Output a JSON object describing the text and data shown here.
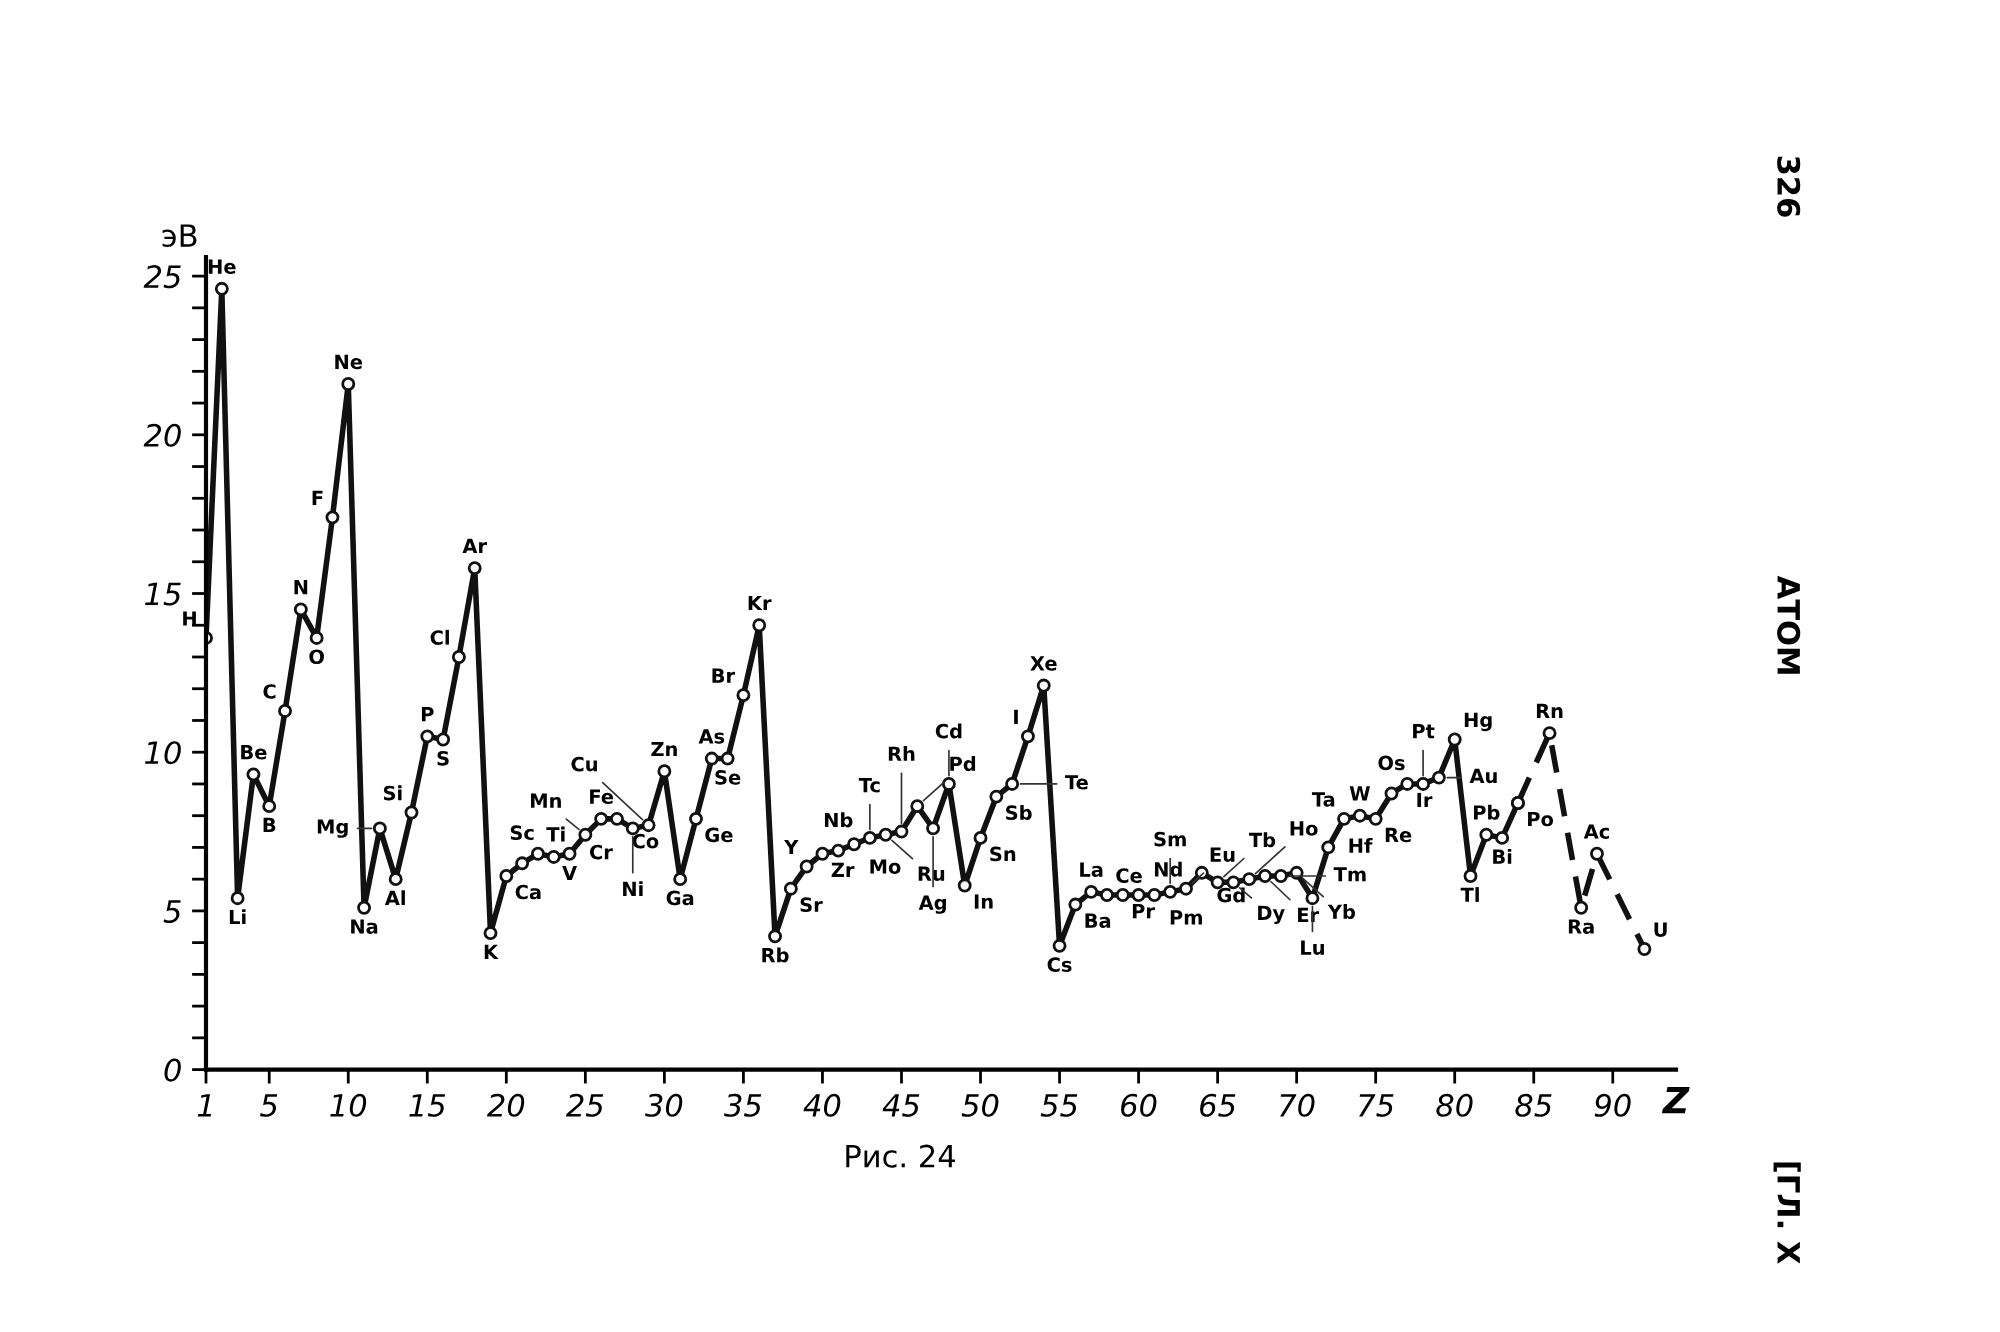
{
  "chart_data": {
    "type": "line",
    "ylabel": "эВ",
    "xlabel": "Z",
    "xlim": [
      1,
      94
    ],
    "ylim": [
      0,
      25.6
    ],
    "xticks": [
      1,
      5,
      10,
      15,
      20,
      25,
      30,
      35,
      40,
      45,
      50,
      55,
      60,
      65,
      70,
      75,
      80,
      85,
      90
    ],
    "yticks": [
      0,
      {
        "value": 1,
        "label": null
      },
      {
        "value": 2,
        "label": null
      },
      {
        "value": 3,
        "label": null
      },
      {
        "value": 4,
        "label": null
      },
      5,
      {
        "value": 6,
        "label": null
      },
      {
        "value": 7,
        "label": null
      },
      {
        "value": 8,
        "label": null
      },
      {
        "value": 9,
        "label": null
      },
      10,
      {
        "value": 11,
        "label": null
      },
      {
        "value": 12,
        "label": null
      },
      {
        "value": 13,
        "label": null
      },
      {
        "value": 14,
        "label": null
      },
      15,
      {
        "value": 16,
        "label": null
      },
      {
        "value": 17,
        "label": null
      },
      {
        "value": 18,
        "label": null
      },
      {
        "value": 19,
        "label": null
      },
      20,
      {
        "value": 21,
        "label": null
      },
      {
        "value": 22,
        "label": null
      },
      {
        "value": 23,
        "label": null
      },
      {
        "value": 24,
        "label": null
      },
      25
    ],
    "grid": false,
    "legend": false,
    "marker": "circle",
    "series": [
      {
        "color": "#111111",
        "line_style": "solid",
        "x": [
          1,
          2,
          3,
          4,
          5,
          6,
          7,
          8,
          9,
          10,
          11,
          12,
          13,
          14,
          15,
          16,
          17,
          18,
          19,
          20,
          21,
          22,
          23,
          24,
          25,
          26,
          27,
          28,
          29,
          30,
          31,
          32,
          33,
          34,
          35,
          36,
          37,
          38,
          39,
          40,
          41,
          42,
          43,
          44,
          45,
          46,
          47,
          48,
          49,
          50,
          51,
          52,
          53,
          54,
          55,
          56,
          57,
          58,
          59,
          60,
          61,
          62,
          63,
          64,
          65,
          66,
          67,
          68,
          69,
          70,
          71,
          72,
          73,
          74,
          75,
          76,
          77,
          78,
          79,
          80,
          81,
          82,
          83,
          84
        ],
        "values": [
          13.6,
          24.6,
          5.4,
          9.3,
          8.3,
          11.3,
          14.5,
          13.6,
          17.4,
          21.6,
          5.1,
          7.6,
          6.0,
          8.1,
          10.5,
          10.4,
          13.0,
          15.8,
          4.3,
          6.1,
          6.5,
          6.8,
          6.7,
          6.8,
          7.4,
          7.9,
          7.9,
          7.6,
          7.7,
          9.4,
          6.0,
          7.9,
          9.8,
          9.8,
          11.8,
          14.0,
          4.2,
          5.7,
          6.4,
          6.8,
          6.9,
          7.1,
          7.3,
          7.4,
          7.5,
          8.3,
          7.6,
          9.0,
          5.8,
          7.3,
          8.6,
          9.0,
          10.5,
          12.1,
          3.9,
          5.2,
          5.6,
          5.5,
          5.5,
          5.5,
          5.5,
          5.6,
          5.7,
          6.2,
          5.9,
          5.9,
          6.0,
          6.1,
          6.1,
          6.2,
          5.4,
          7.0,
          7.9,
          8.0,
          7.9,
          8.7,
          9.0,
          9.0,
          9.2,
          10.4,
          6.1,
          7.4,
          7.3,
          8.4
        ]
      },
      {
        "color": "#111111",
        "line_style": "dashed",
        "x": [
          84,
          86,
          88,
          89,
          92
        ],
        "values": [
          8.4,
          10.6,
          5.1,
          6.8,
          3.8
        ]
      }
    ],
    "annotations": [
      "Рис. 24",
      "326",
      "АТОМ",
      "[ГЛ. X",
      {
        "text": "H",
        "x": 1,
        "y": 13.6
      },
      {
        "text": "He",
        "x": 2,
        "y": 24.6
      },
      {
        "text": "Li",
        "x": 3,
        "y": 5.4
      },
      {
        "text": "Be",
        "x": 4,
        "y": 9.3
      },
      {
        "text": "B",
        "x": 5,
        "y": 8.3
      },
      {
        "text": "C",
        "x": 6,
        "y": 11.3
      },
      {
        "text": "N",
        "x": 7,
        "y": 14.5
      },
      {
        "text": "O",
        "x": 8,
        "y": 13.6
      },
      {
        "text": "F",
        "x": 9,
        "y": 17.4
      },
      {
        "text": "Ne",
        "x": 10,
        "y": 21.6
      },
      {
        "text": "Na",
        "x": 11,
        "y": 5.1
      },
      {
        "text": "Mg",
        "x": 12,
        "y": 7.6
      },
      {
        "text": "Al",
        "x": 13,
        "y": 6.0
      },
      {
        "text": "Si",
        "x": 14,
        "y": 8.1
      },
      {
        "text": "P",
        "x": 15,
        "y": 10.5
      },
      {
        "text": "S",
        "x": 16,
        "y": 10.4
      },
      {
        "text": "Cl",
        "x": 17,
        "y": 13.0
      },
      {
        "text": "Ar",
        "x": 18,
        "y": 15.8
      },
      {
        "text": "K",
        "x": 19,
        "y": 4.3
      },
      {
        "text": "Ca",
        "x": 20,
        "y": 6.1
      },
      {
        "text": "Sc",
        "x": 21,
        "y": 6.5
      },
      {
        "text": "Ti",
        "x": 22,
        "y": 6.8
      },
      {
        "text": "V",
        "x": 23,
        "y": 6.7
      },
      {
        "text": "Cr",
        "x": 24,
        "y": 6.8
      },
      {
        "text": "Mn",
        "x": 25,
        "y": 7.4
      },
      {
        "text": "Fe",
        "x": 26,
        "y": 7.9
      },
      {
        "text": "Co",
        "x": 27,
        "y": 7.9
      },
      {
        "text": "Ni",
        "x": 28,
        "y": 7.6
      },
      {
        "text": "Cu",
        "x": 29,
        "y": 7.7
      },
      {
        "text": "Zn",
        "x": 30,
        "y": 9.4
      },
      {
        "text": "Ga",
        "x": 31,
        "y": 6.0
      },
      {
        "text": "Ge",
        "x": 32,
        "y": 7.9
      },
      {
        "text": "As",
        "x": 33,
        "y": 9.8
      },
      {
        "text": "Se",
        "x": 34,
        "y": 9.8
      },
      {
        "text": "Br",
        "x": 35,
        "y": 11.8
      },
      {
        "text": "Kr",
        "x": 36,
        "y": 14.0
      },
      {
        "text": "Rb",
        "x": 37,
        "y": 4.2
      },
      {
        "text": "Sr",
        "x": 38,
        "y": 5.7
      },
      {
        "text": "Y",
        "x": 39,
        "y": 6.4
      },
      {
        "text": "Zr",
        "x": 40,
        "y": 6.8
      },
      {
        "text": "Nb",
        "x": 41,
        "y": 6.9
      },
      {
        "text": "Mo",
        "x": 42,
        "y": 7.1
      },
      {
        "text": "Tc",
        "x": 43,
        "y": 7.3
      },
      {
        "text": "Ru",
        "x": 44,
        "y": 7.4
      },
      {
        "text": "Rh",
        "x": 45,
        "y": 7.5
      },
      {
        "text": "Pd",
        "x": 46,
        "y": 8.3
      },
      {
        "text": "Ag",
        "x": 47,
        "y": 7.6
      },
      {
        "text": "Cd",
        "x": 48,
        "y": 9.0
      },
      {
        "text": "In",
        "x": 49,
        "y": 5.8
      },
      {
        "text": "Sn",
        "x": 50,
        "y": 7.3
      },
      {
        "text": "Sb",
        "x": 51,
        "y": 8.6
      },
      {
        "text": "Te",
        "x": 52,
        "y": 9.0
      },
      {
        "text": "I",
        "x": 53,
        "y": 10.5
      },
      {
        "text": "Xe",
        "x": 54,
        "y": 12.1
      },
      {
        "text": "Cs",
        "x": 55,
        "y": 3.9
      },
      {
        "text": "Ba",
        "x": 56,
        "y": 5.2
      },
      {
        "text": "La",
        "x": 57,
        "y": 5.6
      },
      {
        "text": "Ce",
        "x": 58,
        "y": 5.5
      },
      {
        "text": "Pr",
        "x": 59,
        "y": 5.5
      },
      {
        "text": "Nd",
        "x": 60,
        "y": 5.5
      },
      {
        "text": "Pm",
        "x": 61,
        "y": 5.5
      },
      {
        "text": "Sm",
        "x": 62,
        "y": 5.6
      },
      {
        "text": "Eu",
        "x": 63,
        "y": 5.7
      },
      {
        "text": "Gd",
        "x": 64,
        "y": 6.2
      },
      {
        "text": "Tb",
        "x": 65,
        "y": 5.9
      },
      {
        "text": "Dy",
        "x": 66,
        "y": 5.9
      },
      {
        "text": "Ho",
        "x": 67,
        "y": 6.0
      },
      {
        "text": "Er",
        "x": 68,
        "y": 6.1
      },
      {
        "text": "Tm",
        "x": 69,
        "y": 6.1
      },
      {
        "text": "Yb",
        "x": 70,
        "y": 6.2
      },
      {
        "text": "Lu",
        "x": 71,
        "y": 5.4
      },
      {
        "text": "Hf",
        "x": 72,
        "y": 7.0
      },
      {
        "text": "Ta",
        "x": 73,
        "y": 7.9
      },
      {
        "text": "W",
        "x": 74,
        "y": 8.0
      },
      {
        "text": "Re",
        "x": 75,
        "y": 7.9
      },
      {
        "text": "Os",
        "x": 76,
        "y": 8.7
      },
      {
        "text": "Ir",
        "x": 77,
        "y": 9.0
      },
      {
        "text": "Pt",
        "x": 78,
        "y": 9.0
      },
      {
        "text": "Au",
        "x": 79,
        "y": 9.2
      },
      {
        "text": "Hg",
        "x": 80,
        "y": 10.4
      },
      {
        "text": "Tl",
        "x": 81,
        "y": 6.1
      },
      {
        "text": "Pb",
        "x": 82,
        "y": 7.4
      },
      {
        "text": "Bi",
        "x": 83,
        "y": 7.3
      },
      {
        "text": "Po",
        "x": 84,
        "y": 8.4
      },
      {
        "text": "Rn",
        "x": 86,
        "y": 10.6
      },
      {
        "text": "Ra",
        "x": 88,
        "y": 5.1
      },
      {
        "text": "Ac",
        "x": 89,
        "y": 6.8
      },
      {
        "text": "U",
        "x": 92,
        "y": 3.8
      }
    ]
  }
}
